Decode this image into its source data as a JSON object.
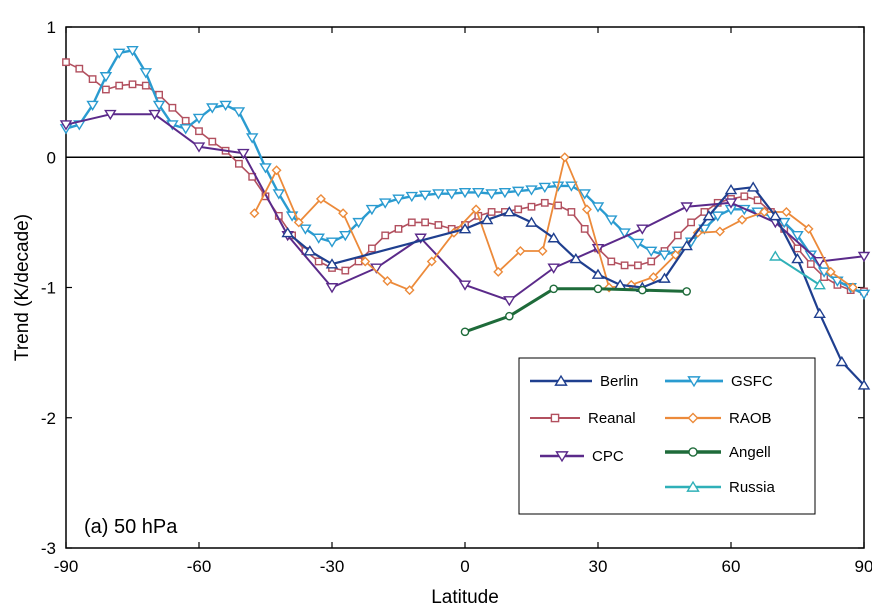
{
  "colors": {
    "Berlin": "#1f3f8f",
    "Reanal": "#b2505f",
    "CPC": "#5b2a8a",
    "GSFC": "#2a9bd0",
    "RAOB": "#ec8a3a",
    "Angell": "#1e6b3a",
    "Russia": "#2fb0b8"
  },
  "chart_data": {
    "type": "line",
    "title": "",
    "xlabel": "Latitude",
    "ylabel": "Trend (K/decade)",
    "annotation": "(a) 50 hPa",
    "xlim": [
      -90,
      90
    ],
    "ylim": [
      -3,
      1
    ],
    "xticks": [
      -90,
      -60,
      -30,
      0,
      30,
      60,
      90
    ],
    "yticks": [
      1,
      0,
      -1,
      -2,
      -3
    ],
    "grid": false,
    "zero_line": true,
    "legend_position": "bottom-right",
    "legend_order": [
      "Berlin",
      "GSFC",
      "Reanal",
      "RAOB",
      "CPC",
      "Angell",
      "Russia"
    ],
    "series": [
      {
        "name": "Berlin",
        "marker": "triangle-up",
        "x": [
          -40,
          -35,
          -30,
          0,
          5,
          10,
          15,
          20,
          25,
          30,
          35,
          40,
          45,
          50,
          55,
          60,
          65,
          70,
          75,
          80,
          85,
          90
        ],
        "y": [
          -0.58,
          -0.72,
          -0.82,
          -0.55,
          -0.48,
          -0.42,
          -0.5,
          -0.62,
          -0.78,
          -0.9,
          -0.98,
          -1.0,
          -0.93,
          -0.68,
          -0.45,
          -0.25,
          -0.23,
          -0.45,
          -0.78,
          -1.2,
          -1.57,
          -1.75
        ]
      },
      {
        "name": "Reanal",
        "marker": "square",
        "x": [
          -90,
          -87,
          -84,
          -81,
          -78,
          -75,
          -72,
          -69,
          -66,
          -63,
          -60,
          -57,
          -54,
          -51,
          -48,
          -45,
          -42,
          -39,
          -36,
          -33,
          -30,
          -27,
          -24,
          -21,
          -18,
          -15,
          -12,
          -9,
          -6,
          -3,
          0,
          3,
          6,
          9,
          12,
          15,
          18,
          21,
          24,
          27,
          30,
          33,
          36,
          39,
          42,
          45,
          48,
          51,
          54,
          57,
          60,
          63,
          66,
          69,
          72,
          75,
          78,
          81,
          84,
          87,
          90
        ],
        "y": [
          0.73,
          0.68,
          0.6,
          0.52,
          0.55,
          0.56,
          0.55,
          0.48,
          0.38,
          0.28,
          0.2,
          0.12,
          0.05,
          -0.05,
          -0.15,
          -0.3,
          -0.45,
          -0.6,
          -0.72,
          -0.8,
          -0.85,
          -0.87,
          -0.8,
          -0.7,
          -0.6,
          -0.55,
          -0.5,
          -0.5,
          -0.52,
          -0.55,
          -0.52,
          -0.45,
          -0.42,
          -0.42,
          -0.4,
          -0.38,
          -0.35,
          -0.37,
          -0.42,
          -0.55,
          -0.7,
          -0.8,
          -0.83,
          -0.83,
          -0.8,
          -0.72,
          -0.6,
          -0.5,
          -0.42,
          -0.35,
          -0.32,
          -0.3,
          -0.33,
          -0.42,
          -0.55,
          -0.7,
          -0.82,
          -0.92,
          -0.98,
          -1.02,
          -1.03
        ]
      },
      {
        "name": "CPC",
        "marker": "triangle-down",
        "x": [
          -90,
          -80,
          -70,
          -60,
          -50,
          -40,
          -30,
          -20,
          -10,
          0,
          10,
          20,
          30,
          40,
          50,
          60,
          70,
          80,
          90
        ],
        "y": [
          0.25,
          0.33,
          0.33,
          0.08,
          0.03,
          -0.6,
          -1.0,
          -0.85,
          -0.62,
          -0.98,
          -1.1,
          -0.85,
          -0.7,
          -0.55,
          -0.38,
          -0.35,
          -0.5,
          -0.8,
          -0.76
        ]
      },
      {
        "name": "GSFC",
        "marker": "triangle-down",
        "x": [
          -90,
          -87,
          -84,
          -81,
          -78,
          -75,
          -72,
          -69,
          -66,
          -63,
          -60,
          -57,
          -54,
          -51,
          -48,
          -45,
          -42,
          -39,
          -36,
          -33,
          -30,
          -27,
          -24,
          -21,
          -18,
          -15,
          -12,
          -9,
          -6,
          -3,
          0,
          3,
          6,
          9,
          12,
          15,
          18,
          21,
          24,
          27,
          30,
          33,
          36,
          39,
          42,
          45,
          48,
          51,
          54,
          57,
          60,
          63,
          66,
          69,
          72,
          75,
          78,
          81,
          84,
          87,
          90
        ],
        "y": [
          0.22,
          0.25,
          0.4,
          0.62,
          0.8,
          0.82,
          0.65,
          0.4,
          0.25,
          0.22,
          0.3,
          0.38,
          0.4,
          0.35,
          0.15,
          -0.08,
          -0.28,
          -0.45,
          -0.55,
          -0.62,
          -0.65,
          -0.6,
          -0.5,
          -0.4,
          -0.35,
          -0.32,
          -0.3,
          -0.29,
          -0.28,
          -0.28,
          -0.27,
          -0.27,
          -0.28,
          -0.27,
          -0.26,
          -0.25,
          -0.23,
          -0.22,
          -0.22,
          -0.28,
          -0.38,
          -0.48,
          -0.58,
          -0.66,
          -0.72,
          -0.75,
          -0.72,
          -0.65,
          -0.55,
          -0.45,
          -0.4,
          -0.4,
          -0.42,
          -0.45,
          -0.5,
          -0.6,
          -0.75,
          -0.88,
          -0.95,
          -1.0,
          -1.05
        ]
      },
      {
        "name": "RAOB",
        "marker": "diamond",
        "x": [
          -47.5,
          -42.5,
          -37.5,
          -32.5,
          -27.5,
          -22.5,
          -17.5,
          -12.5,
          -7.5,
          -2.5,
          2.5,
          7.5,
          12.5,
          17.5,
          22.5,
          27.5,
          32.5,
          37.5,
          42.5,
          47.5,
          52.5,
          57.5,
          62.5,
          67.5,
          72.5,
          77.5,
          82.5,
          87.5
        ],
        "y": [
          -0.43,
          -0.1,
          -0.5,
          -0.32,
          -0.43,
          -0.8,
          -0.95,
          -1.02,
          -0.8,
          -0.58,
          -0.4,
          -0.88,
          -0.72,
          -0.72,
          0.0,
          -0.4,
          -1.0,
          -0.98,
          -0.92,
          -0.75,
          -0.58,
          -0.57,
          -0.48,
          -0.42,
          -0.42,
          -0.55,
          -0.88,
          -1.0
        ]
      },
      {
        "name": "Angell",
        "marker": "circle",
        "x": [
          0,
          10,
          20,
          30,
          40,
          50
        ],
        "y": [
          -1.34,
          -1.22,
          -1.01,
          -1.01,
          -1.02,
          -1.03
        ]
      },
      {
        "name": "Russia",
        "marker": "triangle-up",
        "x": [
          70,
          80
        ],
        "y": [
          -0.76,
          -0.98
        ]
      }
    ]
  }
}
